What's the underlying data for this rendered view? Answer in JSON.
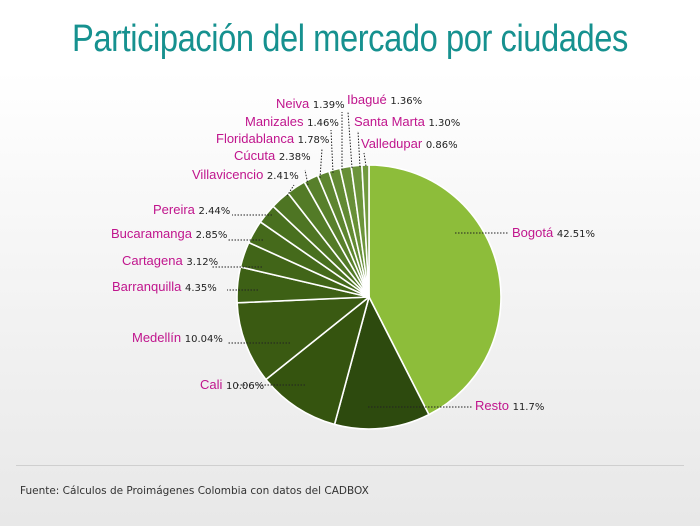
{
  "title": "Participación del mercado por ciudades",
  "source": "Fuente: Cálculos de Proimágenes Colombia con datos del CADBOX",
  "chart_data": {
    "type": "pie",
    "title": "Participación del mercado por ciudades",
    "slices": [
      {
        "label": "Bogotá",
        "value": 42.51,
        "value_text": "42.51%",
        "color": "#8dbd3a"
      },
      {
        "label": "Resto",
        "value": 11.7,
        "value_text": "11.7%",
        "color": "#2d4a0e"
      },
      {
        "label": "Cali",
        "value": 10.06,
        "value_text": "10.06%",
        "color": "#35540f"
      },
      {
        "label": "Medellín",
        "value": 10.04,
        "value_text": "10.04%",
        "color": "#3a5a12"
      },
      {
        "label": "Barranquilla",
        "value": 4.35,
        "value_text": "4.35%",
        "color": "#3d6015"
      },
      {
        "label": "Cartagena",
        "value": 3.12,
        "value_text": "3.12%",
        "color": "#416518"
      },
      {
        "label": "Bucaramanga",
        "value": 2.85,
        "value_text": "2.85%",
        "color": "#456a1b"
      },
      {
        "label": "Pereira",
        "value": 2.44,
        "value_text": "2.44%",
        "color": "#49701f"
      },
      {
        "label": "Villavicencio",
        "value": 2.41,
        "value_text": "2.41%",
        "color": "#4e7523"
      },
      {
        "label": "Cúcuta",
        "value": 2.38,
        "value_text": "2.38%",
        "color": "#537b27"
      },
      {
        "label": "Floridablanca",
        "value": 1.78,
        "value_text": "1.78%",
        "color": "#58802b"
      },
      {
        "label": "Manizales",
        "value": 1.46,
        "value_text": "1.46%",
        "color": "#5d852f"
      },
      {
        "label": "Neiva",
        "value": 1.39,
        "value_text": "1.39%",
        "color": "#628a33"
      },
      {
        "label": "Ibagué",
        "value": 1.36,
        "value_text": "1.36%",
        "color": "#678f37"
      },
      {
        "label": "Santa Marta",
        "value": 1.3,
        "value_text": "1.30%",
        "color": "#6c943b"
      },
      {
        "label": "Valledupar",
        "value": 0.86,
        "value_text": "0.86%",
        "color": "#71993f"
      }
    ]
  }
}
